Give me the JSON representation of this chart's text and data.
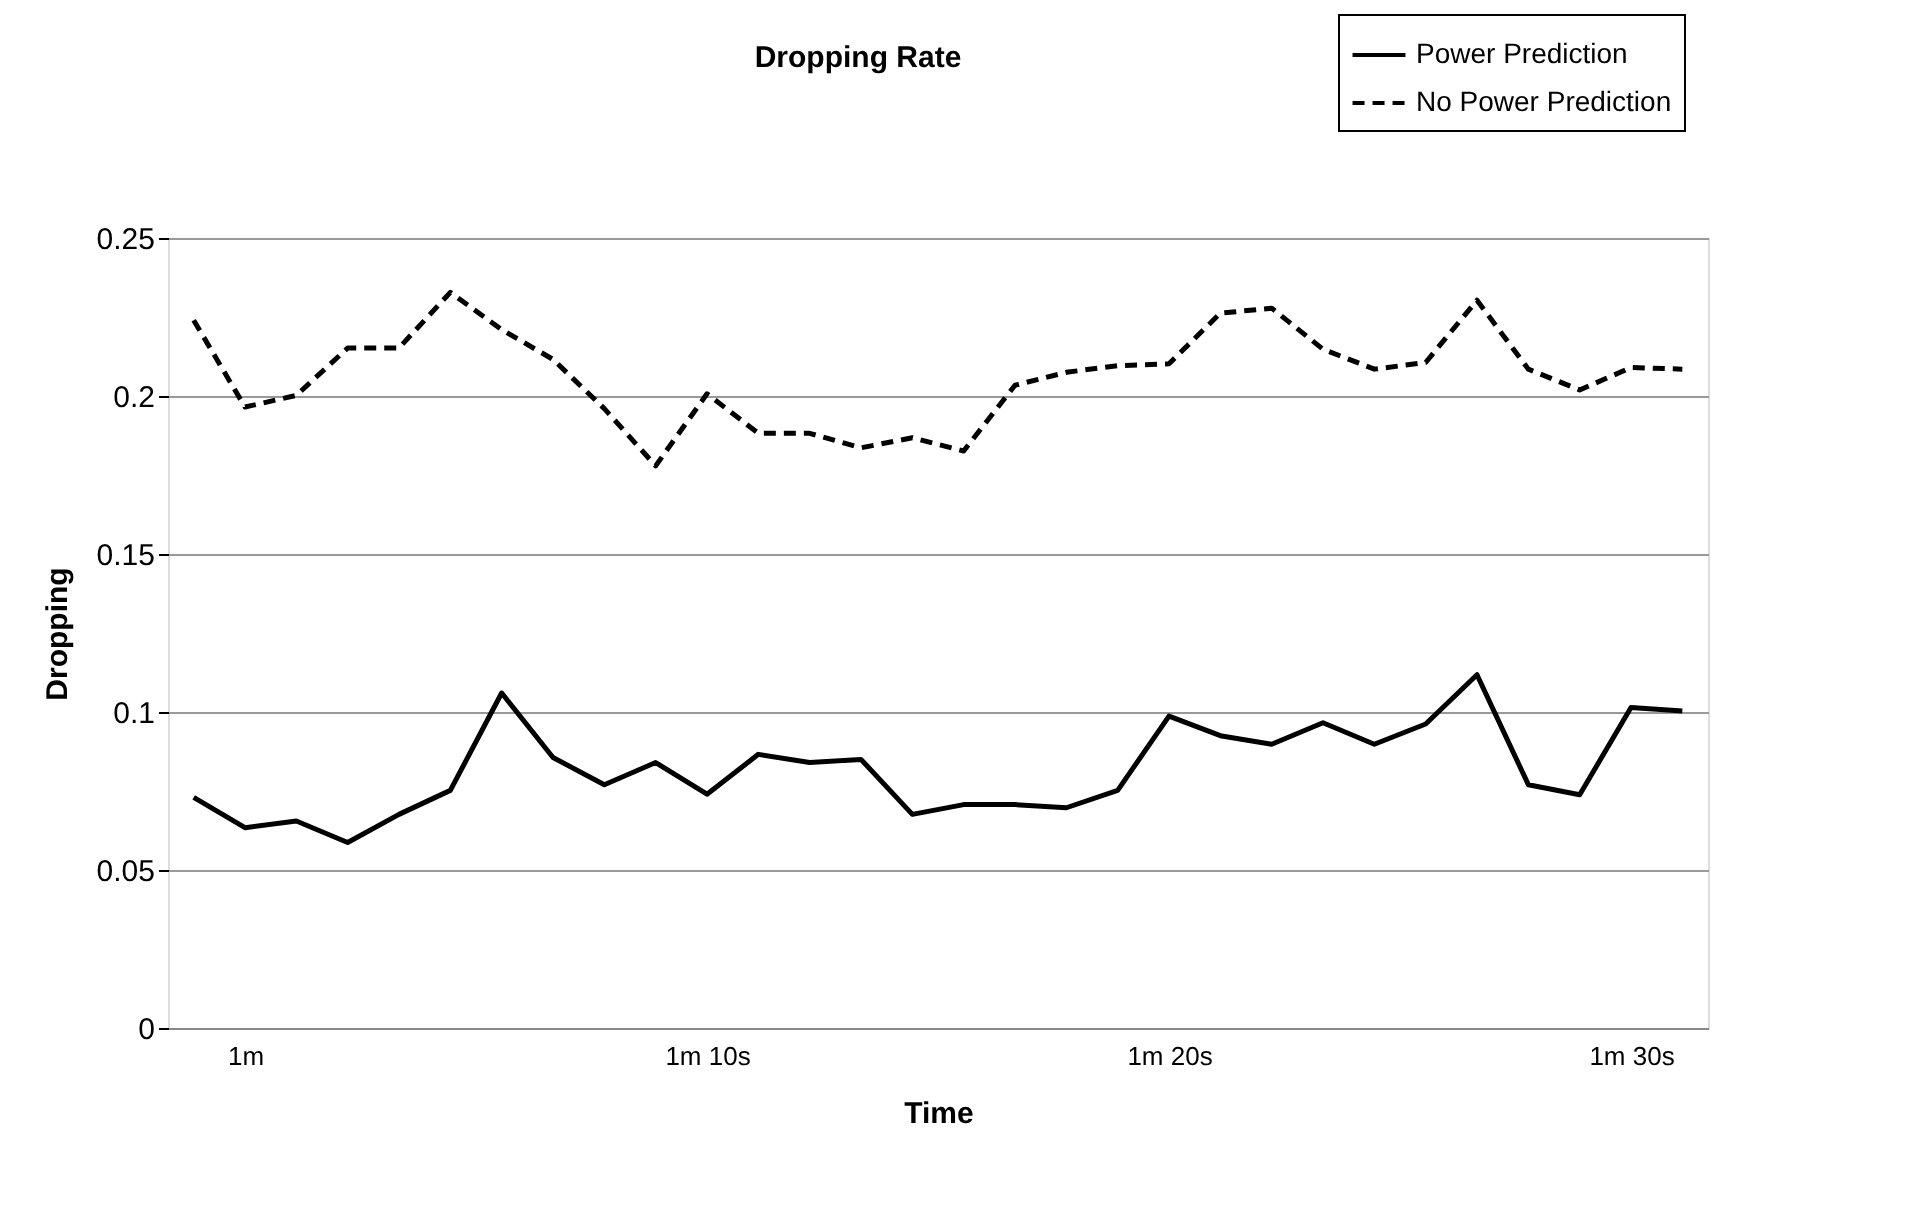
{
  "chart_data": {
    "type": "line",
    "title": "Dropping Rate",
    "xlabel": "Time",
    "ylabel": "Dropping",
    "categories": [
      null,
      "1m",
      null,
      null,
      null,
      null,
      null,
      null,
      null,
      null,
      "1m 10s",
      null,
      null,
      null,
      null,
      null,
      null,
      null,
      null,
      "1m 20s",
      null,
      null,
      null,
      null,
      null,
      null,
      null,
      null,
      "1m 30s",
      null
    ],
    "series": [
      {
        "name": "Power Prediction",
        "color": "#000000",
        "line_style": "solid",
        "values": [
          0.073,
          0.0634,
          0.0655,
          0.0587,
          0.0676,
          0.0752,
          0.106,
          0.0856,
          0.077,
          0.084,
          0.074,
          0.0866,
          0.084,
          0.085,
          0.0676,
          0.0707,
          0.0707,
          0.0697,
          0.0752,
          0.0987,
          0.0925,
          0.0898,
          0.0966,
          0.0898,
          0.0962,
          0.1118,
          0.077,
          0.0738,
          0.1014,
          0.1003
        ]
      },
      {
        "name": "No Power Prediction",
        "color": "#000000",
        "line_style": "dashed",
        "values": [
          0.224,
          0.1965,
          0.2002,
          0.2152,
          0.2152,
          0.2328,
          0.221,
          0.2116,
          0.196,
          0.1779,
          0.2007,
          0.1882,
          0.1882,
          0.1836,
          0.1868,
          0.1826,
          0.2034,
          0.2075,
          0.2096,
          0.2102,
          0.2262,
          0.2278,
          0.2148,
          0.2085,
          0.2106,
          0.2303,
          0.2085,
          0.2019,
          0.209,
          0.2085
        ]
      }
    ],
    "ylim": [
      0,
      0.25
    ],
    "yticks": [
      0,
      0.05,
      0.1,
      0.15,
      0.2,
      0.25
    ],
    "grid": "y",
    "legend": "top right",
    "marker": "none"
  }
}
